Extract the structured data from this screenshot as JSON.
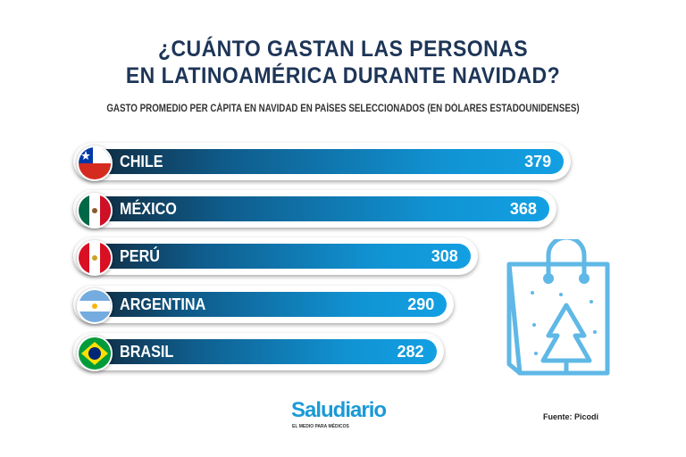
{
  "chart_data": {
    "type": "bar",
    "orientation": "horizontal",
    "title": "¿CUÁNTO GASTAN LAS PERSONAS EN LATINOAMÉRICA DURANTE NAVIDAD?",
    "title_lines": [
      "¿CUÁNTO GASTAN LAS PERSONAS",
      "EN LATINOAMÉRICA DURANTE NAVIDAD?"
    ],
    "subtitle": "GASTO PROMEDIO PER CÁPITA EN NAVIDAD EN PAÍSES SELECCIONADOS (EN DÓLARES ESTADOUNIDENSES)",
    "categories": [
      "CHILE",
      "MÉXICO",
      "PERÚ",
      "ARGENTINA",
      "BRASIL"
    ],
    "flags": [
      "chile-flag",
      "mexico-flag",
      "peru-flag",
      "argentina-flag",
      "brasil-flag"
    ],
    "values": [
      379,
      368,
      308,
      290,
      282
    ],
    "xlabel": "",
    "ylabel": "Dólares estadounidenses"
  },
  "footer": {
    "logo": "Saludiario",
    "logo_tagline": "EL MEDIO PARA MÉDICOS",
    "source": "Fuente: Picodi"
  },
  "colors": {
    "title": "#1d3557",
    "bar_end": "#12a0e3",
    "bar_start": "#102a3e",
    "icon": "#5fb8e6"
  }
}
